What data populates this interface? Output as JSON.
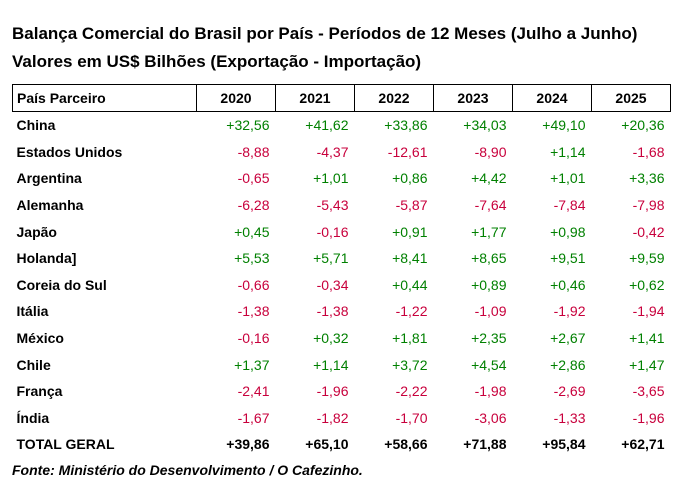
{
  "chart_data": {
    "type": "table",
    "title": "Balança Comercial do Brasil por País - Períodos de 12 Meses (Julho a Junho)",
    "subtitle": "Valores em US$ Bilhões (Exportação - Importação)",
    "header_label": "País Parceiro",
    "columns": [
      "2020",
      "2021",
      "2022",
      "2023",
      "2024",
      "2025"
    ],
    "rows": [
      {
        "country": "China",
        "values": [
          "+32,56",
          "+41,62",
          "+33,86",
          "+34,03",
          "+49,10",
          "+20,36"
        ]
      },
      {
        "country": "Estados Unidos",
        "values": [
          "-8,88",
          "-4,37",
          "-12,61",
          "-8,90",
          "+1,14",
          "-1,68"
        ]
      },
      {
        "country": "Argentina",
        "values": [
          "-0,65",
          "+1,01",
          "+0,86",
          "+4,42",
          "+1,01",
          "+3,36"
        ]
      },
      {
        "country": "Alemanha",
        "values": [
          "-6,28",
          "-5,43",
          "-5,87",
          "-7,64",
          "-7,84",
          "-7,98"
        ]
      },
      {
        "country": "Japão",
        "values": [
          "+0,45",
          "-0,16",
          "+0,91",
          "+1,77",
          "+0,98",
          "-0,42"
        ]
      },
      {
        "country": "Holanda]",
        "values": [
          "+5,53",
          "+5,71",
          "+8,41",
          "+8,65",
          "+9,51",
          "+9,59"
        ]
      },
      {
        "country": "Coreia do Sul",
        "values": [
          "-0,66",
          "-0,34",
          "+0,44",
          "+0,89",
          "+0,46",
          "+0,62"
        ]
      },
      {
        "country": "Itália",
        "values": [
          "-1,38",
          "-1,38",
          "-1,22",
          "-1,09",
          "-1,92",
          "-1,94"
        ]
      },
      {
        "country": "México",
        "values": [
          "-0,16",
          "+0,32",
          "+1,81",
          "+2,35",
          "+2,67",
          "+1,41"
        ]
      },
      {
        "country": "Chile",
        "values": [
          "+1,37",
          "+1,14",
          "+3,72",
          "+4,54",
          "+2,86",
          "+1,47"
        ]
      },
      {
        "country": "França",
        "values": [
          "-2,41",
          "-1,96",
          "-2,22",
          "-1,98",
          "-2,69",
          "-3,65"
        ]
      },
      {
        "country": "Índia",
        "values": [
          "-1,67",
          "-1,82",
          "-1,70",
          "-3,06",
          "-1,33",
          "-1,96"
        ]
      }
    ],
    "total": {
      "country": "TOTAL GERAL",
      "values": [
        "+39,86",
        "+65,10",
        "+58,66",
        "+71,88",
        "+95,84",
        "+62,71"
      ]
    },
    "source": "Fonte: Ministério do Desenvolvimento / O Cafezinho.",
    "colors": {
      "positive": "#008000",
      "negative": "#c8003c"
    }
  }
}
